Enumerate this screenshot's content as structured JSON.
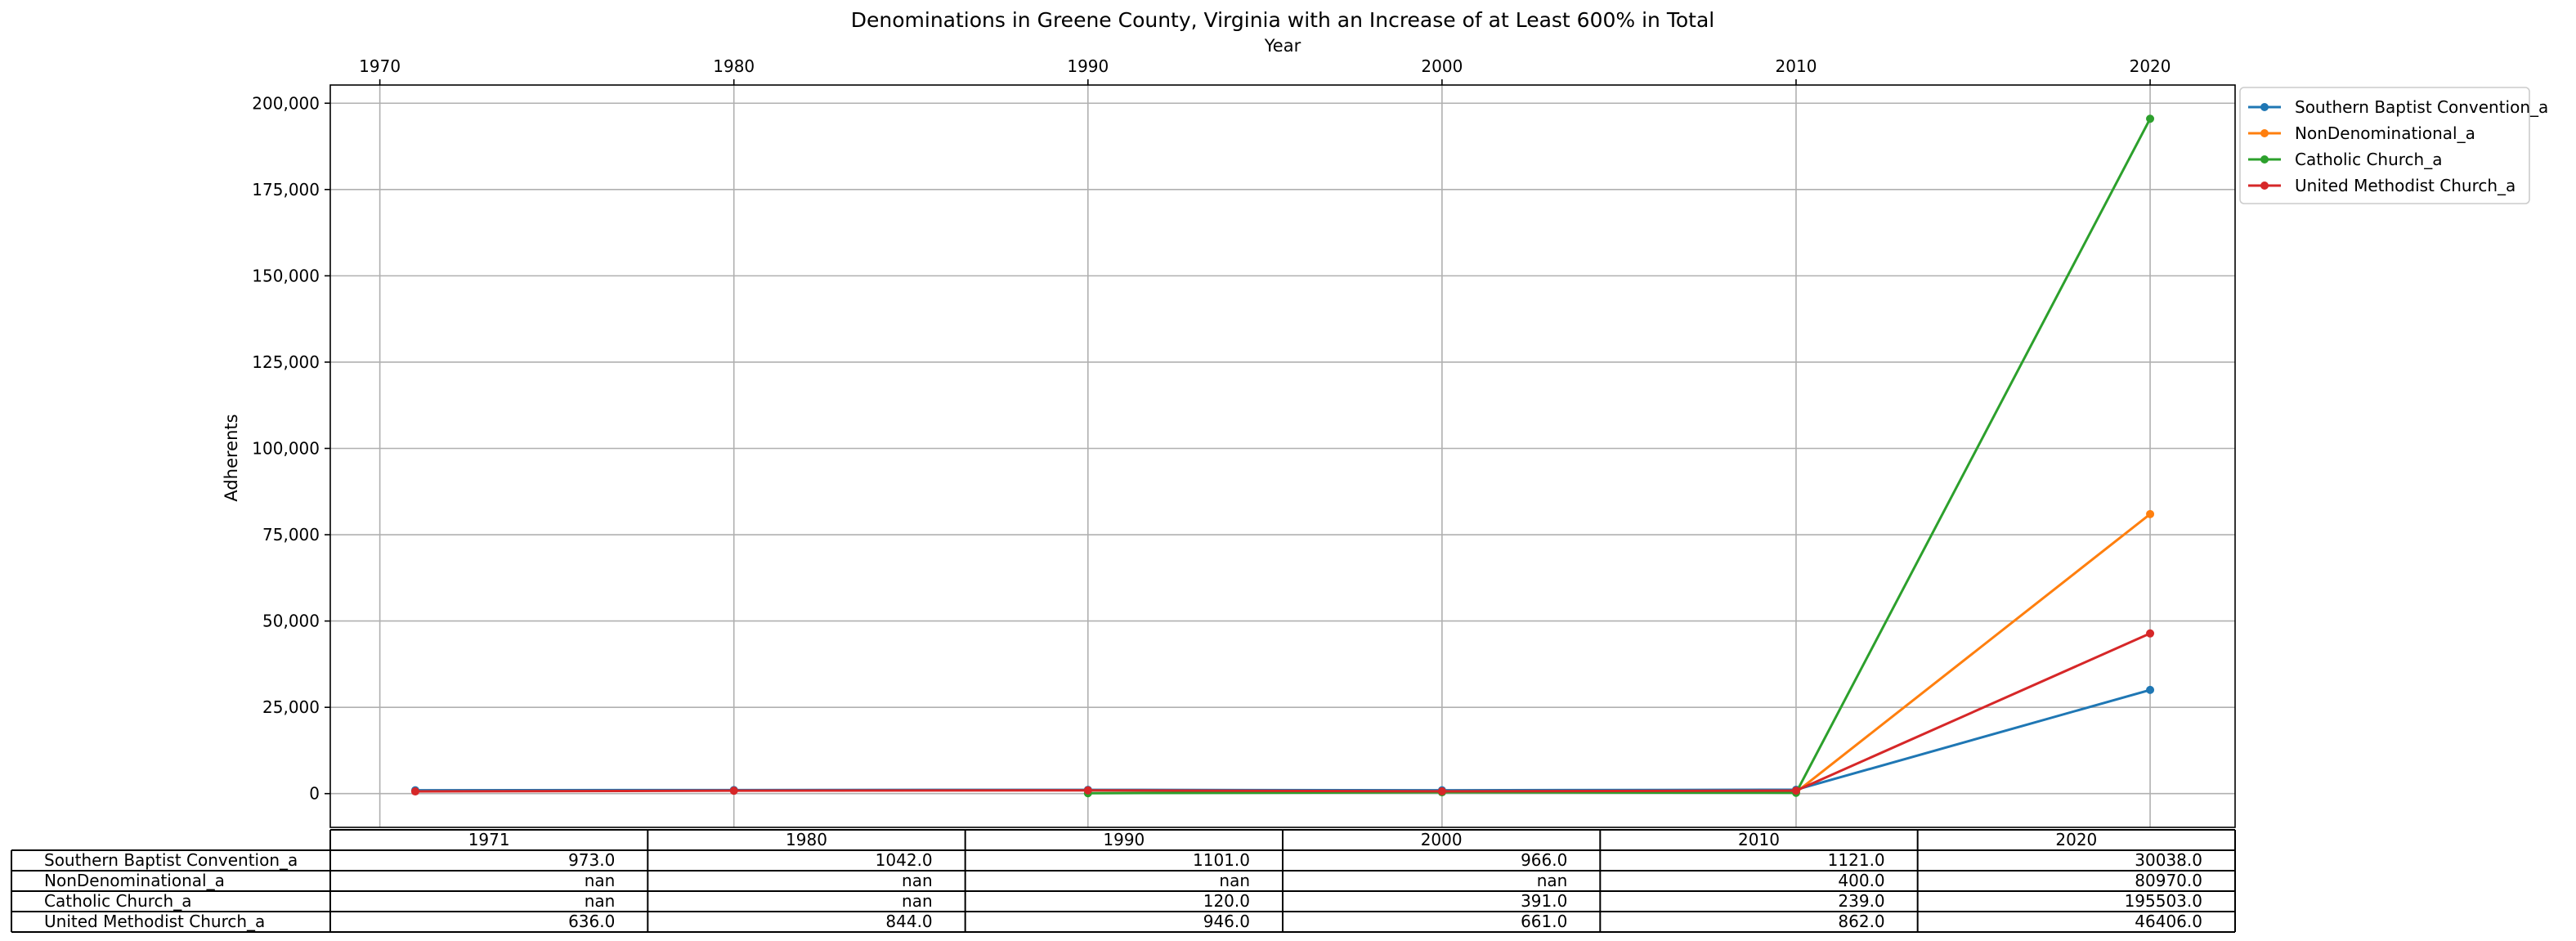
{
  "chart_data": {
    "type": "line",
    "title": "Denominations in Greene County, Virginia with an Increase of at Least 600% in Total",
    "xlabel": "Year",
    "ylabel": "Adherents",
    "x_ticks": [
      "1970",
      "1980",
      "1990",
      "2000",
      "2010",
      "2020"
    ],
    "y_ticks": [
      "0",
      "25,000",
      "50,000",
      "75,000",
      "100,000",
      "125,000",
      "150,000",
      "175,000",
      "200,000"
    ],
    "xlim": [
      1968.6,
      2022.4
    ],
    "ylim": [
      -9775,
      205270
    ],
    "grid": true,
    "legend_placement": "outside-top-right",
    "categories": [
      1971,
      1980,
      1990,
      2000,
      2010,
      2020
    ],
    "series": [
      {
        "name": "Southern Baptist Convention_a",
        "color": "#1f77b4",
        "values": [
          973.0,
          1042.0,
          1101.0,
          966.0,
          1121.0,
          30038.0
        ]
      },
      {
        "name": "NonDenominational_a",
        "color": "#ff7f0e",
        "values": [
          null,
          null,
          null,
          null,
          400.0,
          80970.0
        ]
      },
      {
        "name": "Catholic Church_a",
        "color": "#2ca02c",
        "values": [
          null,
          null,
          120.0,
          391.0,
          239.0,
          195503.0
        ]
      },
      {
        "name": "United Methodist Church_a",
        "color": "#d62728",
        "values": [
          636.0,
          844.0,
          946.0,
          661.0,
          862.0,
          46406.0
        ]
      }
    ],
    "table": {
      "col_labels": [
        "1971",
        "1980",
        "1990",
        "2000",
        "2010",
        "2020"
      ],
      "rows": [
        {
          "label": "Southern Baptist Convention_a",
          "cells": [
            "973.0",
            "1042.0",
            "1101.0",
            "966.0",
            "1121.0",
            "30038.0"
          ]
        },
        {
          "label": "NonDenominational_a",
          "cells": [
            "nan",
            "nan",
            "nan",
            "nan",
            "400.0",
            "80970.0"
          ]
        },
        {
          "label": "Catholic Church_a",
          "cells": [
            "nan",
            "nan",
            "120.0",
            "391.0",
            "239.0",
            "195503.0"
          ]
        },
        {
          "label": "United Methodist Church_a",
          "cells": [
            "636.0",
            "844.0",
            "946.0",
            "661.0",
            "862.0",
            "46406.0"
          ]
        }
      ]
    }
  }
}
